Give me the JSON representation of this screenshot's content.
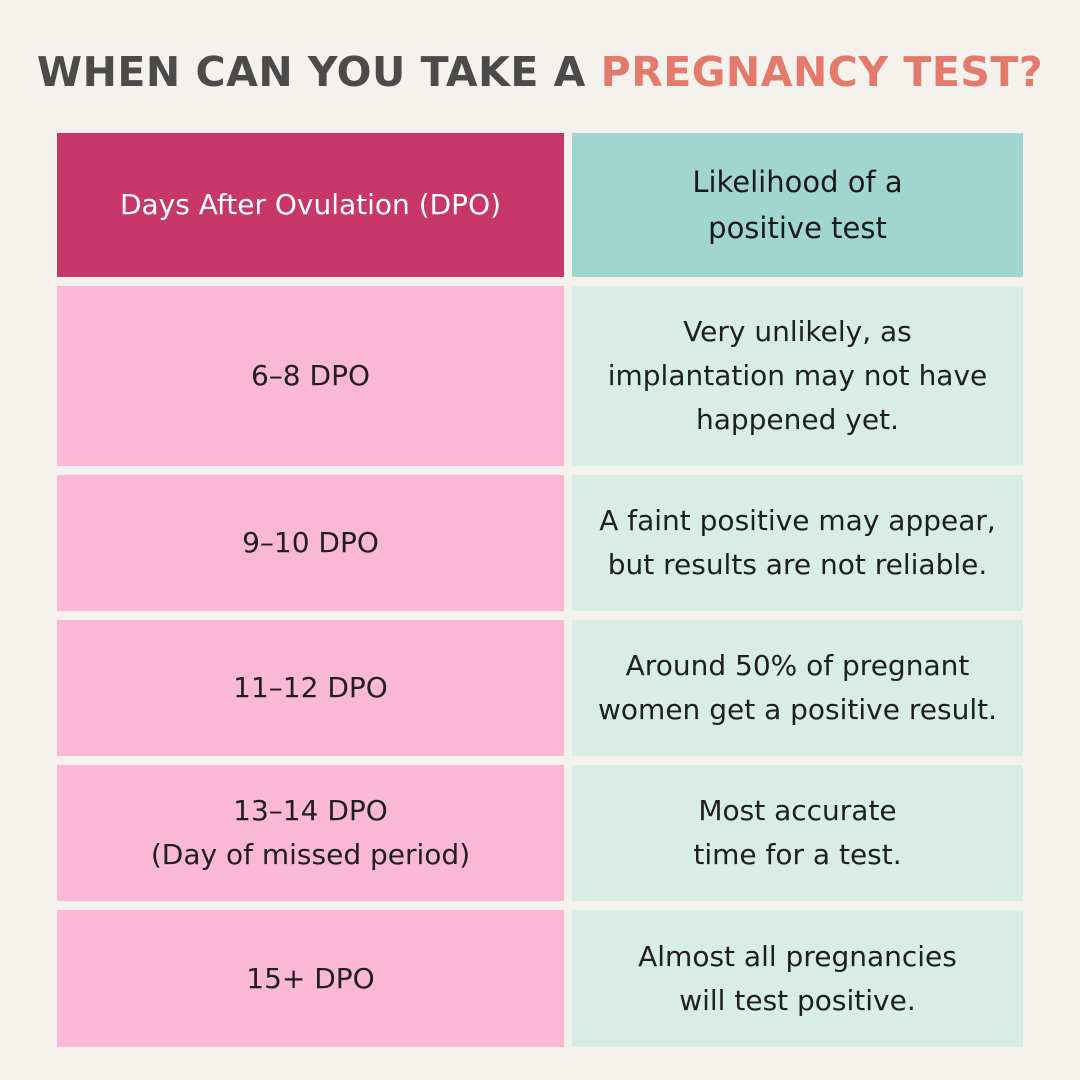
{
  "title": {
    "part1": "WHEN CAN YOU TAKE A ",
    "part2": "PREGNANCY TEST?"
  },
  "colors": {
    "background": "#f5f1ed",
    "title_dark": "#4b4b4b",
    "title_accent": "#e37a6c",
    "header_left": "#c8376a",
    "header_right": "#a1d5d0",
    "cell_left": "#fbb8d5",
    "cell_right": "#d7ede6"
  },
  "table": {
    "headers": {
      "left": "Days After Ovulation (DPO)",
      "right": [
        "Likelihood of a",
        "positive test"
      ]
    },
    "rows": [
      {
        "dpo": [
          "6–8 DPO"
        ],
        "likelihood": [
          "Very unlikely, as",
          "implantation may not have",
          "happened yet."
        ]
      },
      {
        "dpo": [
          "9–10 DPO"
        ],
        "likelihood": [
          "A faint positive may appear,",
          "but results are not reliable."
        ]
      },
      {
        "dpo": [
          "11–12 DPO"
        ],
        "likelihood": [
          "Around 50% of pregnant",
          "women get a positive result."
        ]
      },
      {
        "dpo": [
          "13–14 DPO",
          "(Day of missed period)"
        ],
        "likelihood": [
          "Most accurate",
          "time for a test."
        ]
      },
      {
        "dpo": [
          "15+ DPO"
        ],
        "likelihood": [
          "Almost all pregnancies",
          "will test positive."
        ]
      }
    ]
  }
}
